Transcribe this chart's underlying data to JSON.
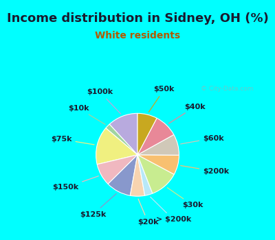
{
  "title": "Income distribution in Sidney, OH (%)",
  "subtitle": "White residents",
  "title_color": "#1a1a2e",
  "subtitle_color": "#b05a00",
  "background_cyan": "#00ffff",
  "background_inner": "#e0f0e8",
  "watermark": "© City-Data.com",
  "slices": [
    {
      "label": "$100k",
      "value": 11.5,
      "color": "#b8aade"
    },
    {
      "label": "$10k",
      "value": 2.0,
      "color": "#a0d4a0"
    },
    {
      "label": "$75k",
      "value": 14.5,
      "color": "#f0f080"
    },
    {
      "label": "$150k",
      "value": 8.5,
      "color": "#f0b8c0"
    },
    {
      "label": "$125k",
      "value": 9.5,
      "color": "#8898cc"
    },
    {
      "label": "$20k",
      "value": 5.5,
      "color": "#f8d4b0"
    },
    {
      "label": "> $200k",
      "value": 3.0,
      "color": "#b8e8f8"
    },
    {
      "label": "$30k",
      "value": 11.0,
      "color": "#c8ec90"
    },
    {
      "label": "$200k",
      "value": 7.5,
      "color": "#f8c070"
    },
    {
      "label": "$60k",
      "value": 8.0,
      "color": "#d0c8b8"
    },
    {
      "label": "$40k",
      "value": 9.0,
      "color": "#e88898"
    },
    {
      "label": "$50k",
      "value": 7.5,
      "color": "#c8a820"
    }
  ],
  "label_fontsize": 8,
  "title_fontsize": 13,
  "subtitle_fontsize": 10,
  "startangle": 90
}
